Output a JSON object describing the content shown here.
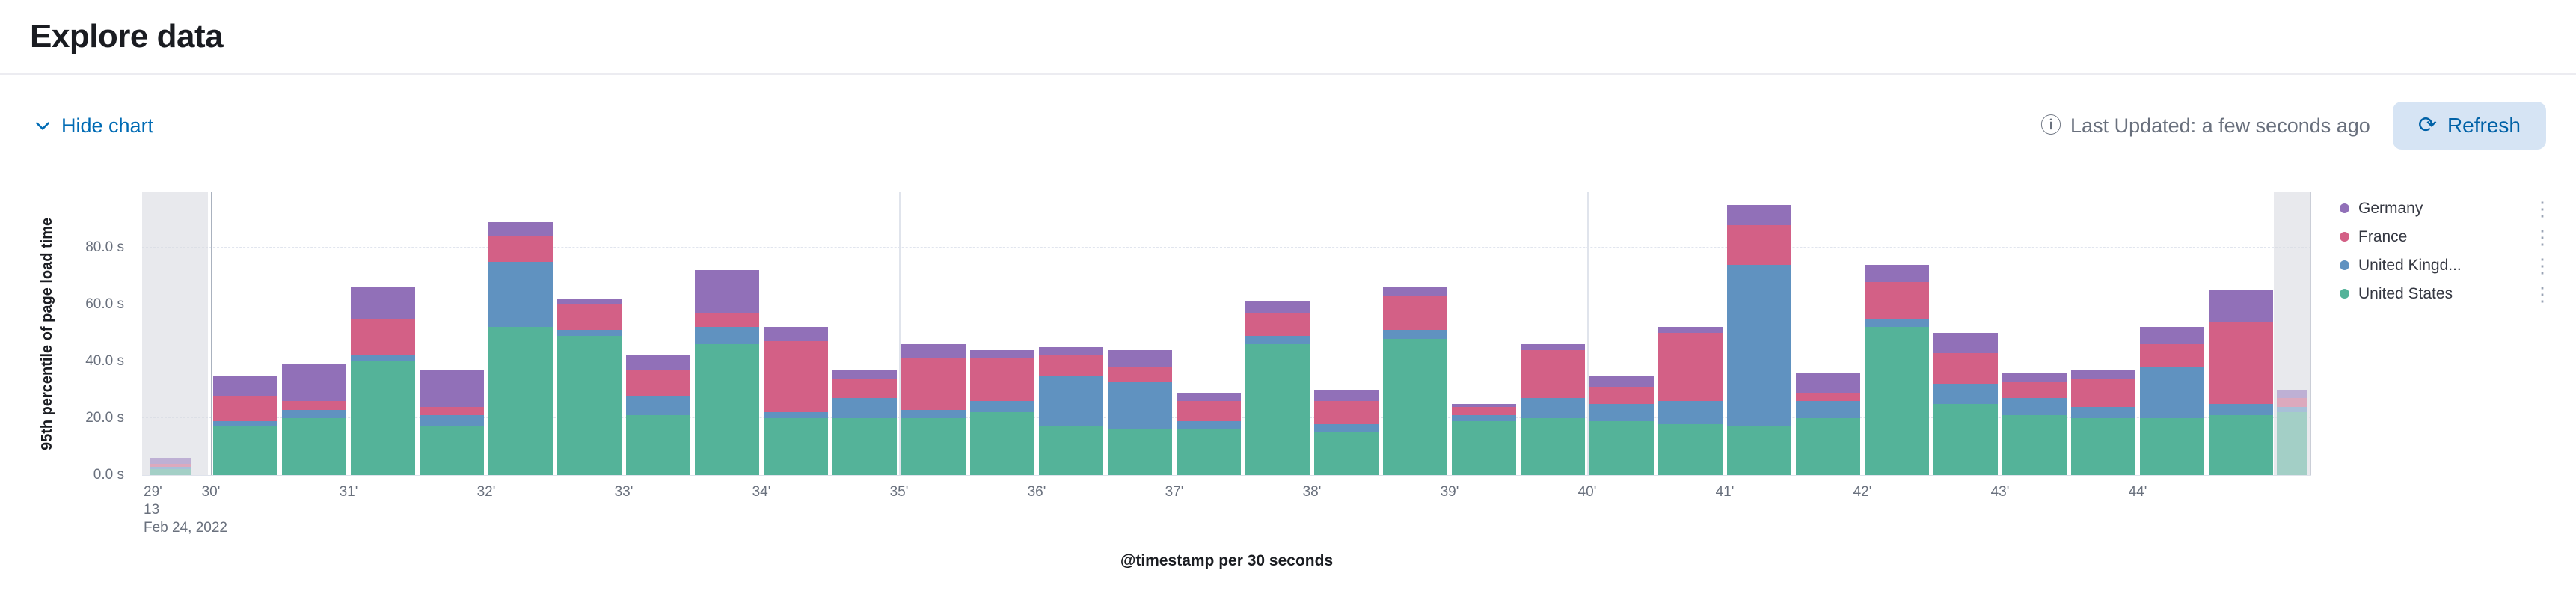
{
  "page": {
    "title": "Explore data"
  },
  "toolbar": {
    "hide_chart_label": "Hide chart",
    "last_updated_label": "Last Updated: a few seconds ago",
    "refresh_label": "Refresh"
  },
  "chart_data": {
    "type": "bar",
    "stacked": true,
    "title": "",
    "xlabel": "@timestamp per 30 seconds",
    "ylabel": "95th percentile of page load time",
    "unit": "s",
    "ylim": [
      0,
      100
    ],
    "grid": "dashed-horizontal",
    "legend_position": "right",
    "y_ticks": [
      {
        "value": 0,
        "label": "0.0 s"
      },
      {
        "value": 20,
        "label": "20.0 s"
      },
      {
        "value": 40,
        "label": "40.0 s"
      },
      {
        "value": 60,
        "label": "60.0 s"
      },
      {
        "value": 80,
        "label": "80.0 s"
      }
    ],
    "x_ticks": [
      "29'",
      "30'",
      "31'",
      "32'",
      "33'",
      "34'",
      "35'",
      "36'",
      "37'",
      "38'",
      "39'",
      "40'",
      "41'",
      "42'",
      "43'",
      "44'"
    ],
    "x_first_tick_sublabels": [
      "13",
      "Feb 24, 2022"
    ],
    "vertical_gridlines_at": [
      1,
      6,
      11
    ],
    "partial_buckets": {
      "left": true,
      "right": true
    },
    "series": [
      {
        "name": "United States",
        "color": "#54B399",
        "values": [
          2,
          17,
          20,
          40,
          17,
          52,
          49,
          21,
          46,
          20,
          20,
          20,
          22,
          17,
          16,
          16,
          46,
          15,
          48,
          19,
          20,
          19,
          18,
          17,
          20,
          52,
          25,
          21,
          20,
          20,
          21,
          22
        ]
      },
      {
        "name": "United Kingdom",
        "color": "#6092C0",
        "values": [
          1,
          2,
          3,
          2,
          4,
          23,
          2,
          7,
          6,
          2,
          7,
          3,
          4,
          18,
          17,
          3,
          3,
          3,
          3,
          2,
          7,
          6,
          8,
          57,
          6,
          3,
          7,
          6,
          4,
          18,
          4,
          2
        ]
      },
      {
        "name": "France",
        "color": "#D36086",
        "values": [
          1,
          9,
          3,
          13,
          3,
          9,
          9,
          9,
          5,
          25,
          7,
          18,
          15,
          7,
          5,
          7,
          8,
          8,
          12,
          3,
          17,
          6,
          24,
          14,
          3,
          13,
          11,
          6,
          10,
          8,
          29,
          3
        ]
      },
      {
        "name": "Germany",
        "color": "#9170B8",
        "values": [
          2,
          7,
          13,
          11,
          13,
          5,
          2,
          5,
          15,
          5,
          3,
          5,
          3,
          3,
          6,
          3,
          4,
          4,
          3,
          1,
          2,
          4,
          2,
          7,
          7,
          6,
          7,
          3,
          3,
          6,
          11,
          3
        ]
      }
    ],
    "legend": [
      {
        "label": "Germany",
        "color": "#9170B8"
      },
      {
        "label": "France",
        "color": "#D36086"
      },
      {
        "label": "United Kingd...",
        "color": "#6092C0"
      },
      {
        "label": "United States",
        "color": "#54B399"
      }
    ]
  }
}
